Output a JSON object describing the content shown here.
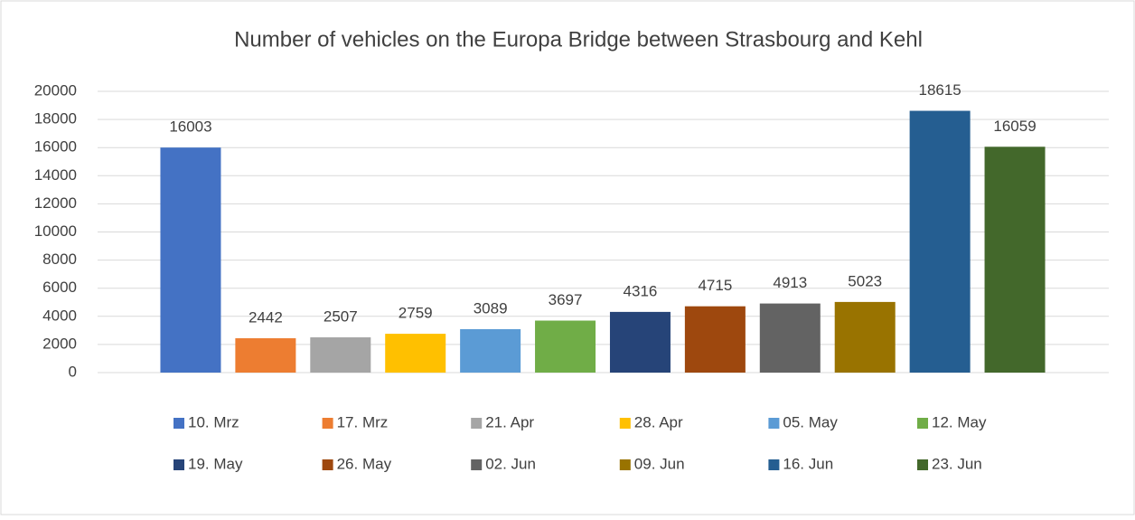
{
  "chart_data": {
    "type": "bar",
    "title": "Number of vehicles on the Europa Bridge between Strasbourg and Kehl",
    "categories": [
      "10. Mrz",
      "17. Mrz",
      "21. Apr",
      "28. Apr",
      "05. May",
      "12. May",
      "19. May",
      "26. May",
      "02. Jun",
      "09. Jun",
      "16. Jun",
      "23. Jun"
    ],
    "values": [
      16003,
      2442,
      2507,
      2759,
      3089,
      3697,
      4316,
      4715,
      4913,
      5023,
      18615,
      16059
    ],
    "colors": [
      "#4472c4",
      "#ed7d31",
      "#a5a5a5",
      "#ffc000",
      "#5b9bd5",
      "#70ad47",
      "#264478",
      "#9e480e",
      "#636363",
      "#997300",
      "#255e91",
      "#43682b"
    ],
    "ylim": [
      0,
      20000
    ],
    "yticks": [
      0,
      2000,
      4000,
      6000,
      8000,
      10000,
      12000,
      14000,
      16000,
      18000,
      20000
    ],
    "grid": true,
    "legend": "bottom"
  }
}
